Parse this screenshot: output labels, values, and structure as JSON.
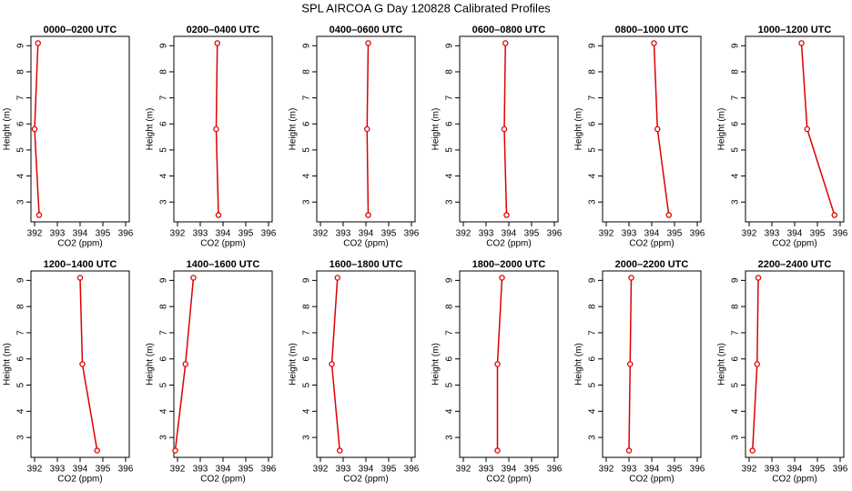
{
  "title": "SPL AIRCOA G  Day 120828  Calibrated Profiles",
  "chart_data": [
    {
      "type": "line",
      "title": "0000–0200 UTC",
      "xlabel": "CO2 (ppm)",
      "ylabel": "Height (m)",
      "x": [
        392.2,
        392.0,
        392.15
      ],
      "values": [
        2.5,
        5.8,
        9.1
      ],
      "color": "#dd0000",
      "xlim": [
        391.84,
        396.16
      ],
      "ylim": [
        2.24,
        9.36
      ],
      "xticks": [
        392,
        393,
        394,
        395,
        396
      ],
      "yticks": [
        3,
        4,
        5,
        6,
        7,
        8,
        9
      ]
    },
    {
      "type": "line",
      "title": "0200–0400 UTC",
      "xlabel": "CO2 (ppm)",
      "ylabel": "Height (m)",
      "x": [
        393.8,
        393.7,
        393.75
      ],
      "values": [
        2.5,
        5.8,
        9.1
      ],
      "color": "#dd0000",
      "xlim": [
        391.84,
        396.16
      ],
      "ylim": [
        2.24,
        9.36
      ],
      "xticks": [
        392,
        393,
        394,
        395,
        396
      ],
      "yticks": [
        3,
        4,
        5,
        6,
        7,
        8,
        9
      ]
    },
    {
      "type": "line",
      "title": "0400–0600 UTC",
      "xlabel": "CO2 (ppm)",
      "ylabel": "Height (m)",
      "x": [
        394.1,
        394.05,
        394.1
      ],
      "values": [
        2.5,
        5.8,
        9.1
      ],
      "color": "#dd0000",
      "xlim": [
        391.84,
        396.16
      ],
      "ylim": [
        2.24,
        9.36
      ],
      "xticks": [
        392,
        393,
        394,
        395,
        396
      ],
      "yticks": [
        3,
        4,
        5,
        6,
        7,
        8,
        9
      ]
    },
    {
      "type": "line",
      "title": "0600–0800 UTC",
      "xlabel": "CO2 (ppm)",
      "ylabel": "Height (m)",
      "x": [
        393.9,
        393.8,
        393.85
      ],
      "values": [
        2.5,
        5.8,
        9.1
      ],
      "color": "#dd0000",
      "xlim": [
        391.84,
        396.16
      ],
      "ylim": [
        2.24,
        9.36
      ],
      "xticks": [
        392,
        393,
        394,
        395,
        396
      ],
      "yticks": [
        3,
        4,
        5,
        6,
        7,
        8,
        9
      ]
    },
    {
      "type": "line",
      "title": "0800–1000 UTC",
      "xlabel": "CO2 (ppm)",
      "ylabel": "Height (m)",
      "x": [
        394.75,
        394.25,
        394.1
      ],
      "values": [
        2.5,
        5.8,
        9.1
      ],
      "color": "#dd0000",
      "xlim": [
        391.84,
        396.16
      ],
      "ylim": [
        2.24,
        9.36
      ],
      "xticks": [
        392,
        393,
        394,
        395,
        396
      ],
      "yticks": [
        3,
        4,
        5,
        6,
        7,
        8,
        9
      ]
    },
    {
      "type": "line",
      "title": "1000–1200 UTC",
      "xlabel": "CO2 (ppm)",
      "ylabel": "Height (m)",
      "x": [
        395.75,
        394.55,
        394.3
      ],
      "values": [
        2.5,
        5.8,
        9.1
      ],
      "color": "#dd0000",
      "xlim": [
        391.84,
        396.16
      ],
      "ylim": [
        2.24,
        9.36
      ],
      "xticks": [
        392,
        393,
        394,
        395,
        396
      ],
      "yticks": [
        3,
        4,
        5,
        6,
        7,
        8,
        9
      ]
    },
    {
      "type": "line",
      "title": "1200–1400 UTC",
      "xlabel": "CO2 (ppm)",
      "ylabel": "Height (m)",
      "x": [
        394.75,
        394.1,
        394.0
      ],
      "values": [
        2.5,
        5.8,
        9.1
      ],
      "color": "#dd0000",
      "xlim": [
        391.84,
        396.16
      ],
      "ylim": [
        2.24,
        9.36
      ],
      "xticks": [
        392,
        393,
        394,
        395,
        396
      ],
      "yticks": [
        3,
        4,
        5,
        6,
        7,
        8,
        9
      ]
    },
    {
      "type": "line",
      "title": "1400–1600 UTC",
      "xlabel": "CO2 (ppm)",
      "ylabel": "Height (m)",
      "x": [
        391.9,
        392.35,
        392.7
      ],
      "values": [
        2.5,
        5.8,
        9.1
      ],
      "color": "#dd0000",
      "xlim": [
        391.84,
        396.16
      ],
      "ylim": [
        2.24,
        9.36
      ],
      "xticks": [
        392,
        393,
        394,
        395,
        396
      ],
      "yticks": [
        3,
        4,
        5,
        6,
        7,
        8,
        9
      ]
    },
    {
      "type": "line",
      "title": "1600–1800 UTC",
      "xlabel": "CO2 (ppm)",
      "ylabel": "Height (m)",
      "x": [
        392.85,
        392.5,
        392.75
      ],
      "values": [
        2.5,
        5.8,
        9.1
      ],
      "color": "#dd0000",
      "xlim": [
        391.84,
        396.16
      ],
      "ylim": [
        2.24,
        9.36
      ],
      "xticks": [
        392,
        393,
        394,
        395,
        396
      ],
      "yticks": [
        3,
        4,
        5,
        6,
        7,
        8,
        9
      ]
    },
    {
      "type": "line",
      "title": "1800–2000 UTC",
      "xlabel": "CO2 (ppm)",
      "ylabel": "Height (m)",
      "x": [
        393.5,
        393.5,
        393.7
      ],
      "values": [
        2.5,
        5.8,
        9.1
      ],
      "color": "#dd0000",
      "xlim": [
        391.84,
        396.16
      ],
      "ylim": [
        2.24,
        9.36
      ],
      "xticks": [
        392,
        393,
        394,
        395,
        396
      ],
      "yticks": [
        3,
        4,
        5,
        6,
        7,
        8,
        9
      ]
    },
    {
      "type": "line",
      "title": "2000–2200 UTC",
      "xlabel": "CO2 (ppm)",
      "ylabel": "Height (m)",
      "x": [
        393.0,
        393.05,
        393.1
      ],
      "values": [
        2.5,
        5.8,
        9.1
      ],
      "color": "#dd0000",
      "xlim": [
        391.84,
        396.16
      ],
      "ylim": [
        2.24,
        9.36
      ],
      "xticks": [
        392,
        393,
        394,
        395,
        396
      ],
      "yticks": [
        3,
        4,
        5,
        6,
        7,
        8,
        9
      ]
    },
    {
      "type": "line",
      "title": "2200–2400 UTC",
      "xlabel": "CO2 (ppm)",
      "ylabel": "Height (m)",
      "x": [
        392.15,
        392.35,
        392.4
      ],
      "values": [
        2.5,
        5.8,
        9.1
      ],
      "color": "#dd0000",
      "xlim": [
        391.84,
        396.16
      ],
      "ylim": [
        2.24,
        9.36
      ],
      "xticks": [
        392,
        393,
        394,
        395,
        396
      ],
      "yticks": [
        3,
        4,
        5,
        6,
        7,
        8,
        9
      ]
    }
  ]
}
